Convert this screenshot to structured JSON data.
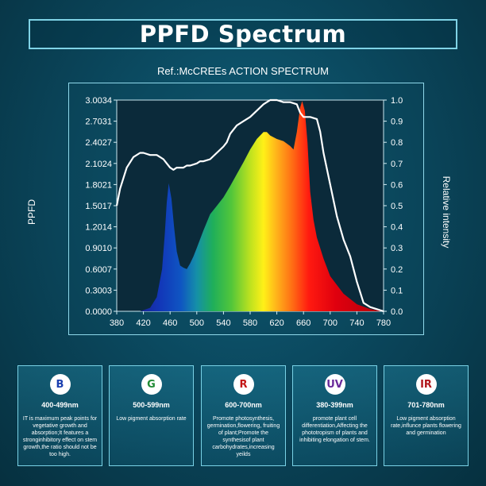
{
  "title": "PPFD Spectrum",
  "chart_data": {
    "type": "area",
    "title": "Ref.:McCREEs ACTION SPECTRUM",
    "ylabel": "PPFD",
    "y2label": "Relative intensity",
    "xlim": [
      380,
      780
    ],
    "ylim": [
      0,
      3.0034
    ],
    "y2lim": [
      0,
      1.0
    ],
    "x_ticks": [
      380,
      420,
      460,
      500,
      540,
      580,
      620,
      660,
      700,
      740,
      780
    ],
    "y_ticks": [
      "0.0000",
      "0.3003",
      "0.6007",
      "0.9010",
      "1.2014",
      "1.5017",
      "1.8021",
      "2.1024",
      "2.4027",
      "2.7031",
      "3.0034"
    ],
    "y2_ticks": [
      "0.0",
      "0.1",
      "0.2",
      "0.3",
      "0.4",
      "0.5",
      "0.6",
      "0.7",
      "0.8",
      "0.9",
      "1.0"
    ],
    "series": [
      {
        "color": "rainbow",
        "x": [
          415,
          430,
          440,
          448,
          452,
          455,
          458,
          462,
          466,
          470,
          475,
          480,
          485,
          490,
          495,
          500,
          510,
          520,
          530,
          540,
          550,
          560,
          570,
          580,
          590,
          600,
          605,
          610,
          620,
          630,
          640,
          645,
          650,
          655,
          658,
          662,
          666,
          670,
          675,
          680,
          690,
          700,
          720,
          740,
          760,
          780
        ],
        "y": [
          0.0,
          0.05,
          0.2,
          0.6,
          1.1,
          1.55,
          1.82,
          1.6,
          1.2,
          0.85,
          0.65,
          0.62,
          0.6,
          0.68,
          0.78,
          0.9,
          1.15,
          1.38,
          1.5,
          1.62,
          1.78,
          1.95,
          2.12,
          2.3,
          2.45,
          2.55,
          2.55,
          2.5,
          2.45,
          2.42,
          2.35,
          2.3,
          2.55,
          2.9,
          2.99,
          2.85,
          2.4,
          1.7,
          1.3,
          1.05,
          0.75,
          0.5,
          0.25,
          0.1,
          0.03,
          0.0
        ]
      },
      {
        "color": "#ffffff",
        "axis": "right",
        "x": [
          380,
          385,
          395,
          405,
          415,
          420,
          430,
          440,
          445,
          450,
          455,
          460,
          465,
          470,
          475,
          480,
          485,
          490,
          500,
          505,
          510,
          520,
          530,
          540,
          545,
          550,
          560,
          570,
          580,
          590,
          600,
          610,
          620,
          630,
          640,
          650,
          655,
          660,
          670,
          680,
          685,
          690,
          700,
          710,
          720,
          730,
          740,
          745,
          750,
          760,
          770,
          780
        ],
        "y": [
          0.5,
          0.58,
          0.68,
          0.73,
          0.75,
          0.75,
          0.74,
          0.74,
          0.73,
          0.72,
          0.7,
          0.68,
          0.67,
          0.68,
          0.68,
          0.68,
          0.69,
          0.69,
          0.7,
          0.71,
          0.71,
          0.72,
          0.75,
          0.78,
          0.8,
          0.84,
          0.88,
          0.9,
          0.92,
          0.95,
          0.98,
          1.0,
          1.0,
          0.99,
          0.99,
          0.98,
          0.94,
          0.92,
          0.92,
          0.91,
          0.85,
          0.75,
          0.6,
          0.45,
          0.34,
          0.26,
          0.14,
          0.09,
          0.04,
          0.02,
          0.01,
          0.0
        ]
      }
    ]
  },
  "cards": [
    {
      "letter": "B",
      "letter_color": "#1a3fb0",
      "range": "400-499nm",
      "desc": "IT is maximum peak points for vegetative growth and absorption;It features a stronginhibitory effect on stem growth,the ratio should not be too high."
    },
    {
      "letter": "G",
      "letter_color": "#1f8a33",
      "range": "500-599nm",
      "desc": "Low pigment absorption rate"
    },
    {
      "letter": "R",
      "letter_color": "#c41616",
      "range": "600-700nm",
      "desc": "Promote photosynthesis, germination,flowering, fruiting of plant;Promote the synthesisof plant carbohydrates,increasing yeilds"
    },
    {
      "letter": "UV",
      "letter_color": "#6a2a9a",
      "range": "380-399nm",
      "desc": "promote plant cell differentiation,Affecting the phototropism of plants and inhibiting elongation of stem."
    },
    {
      "letter": "IR",
      "letter_color": "#b0161b",
      "range": "701-780nm",
      "desc": "Low pigment absorption rate,influnce plants flowering and germination"
    }
  ]
}
